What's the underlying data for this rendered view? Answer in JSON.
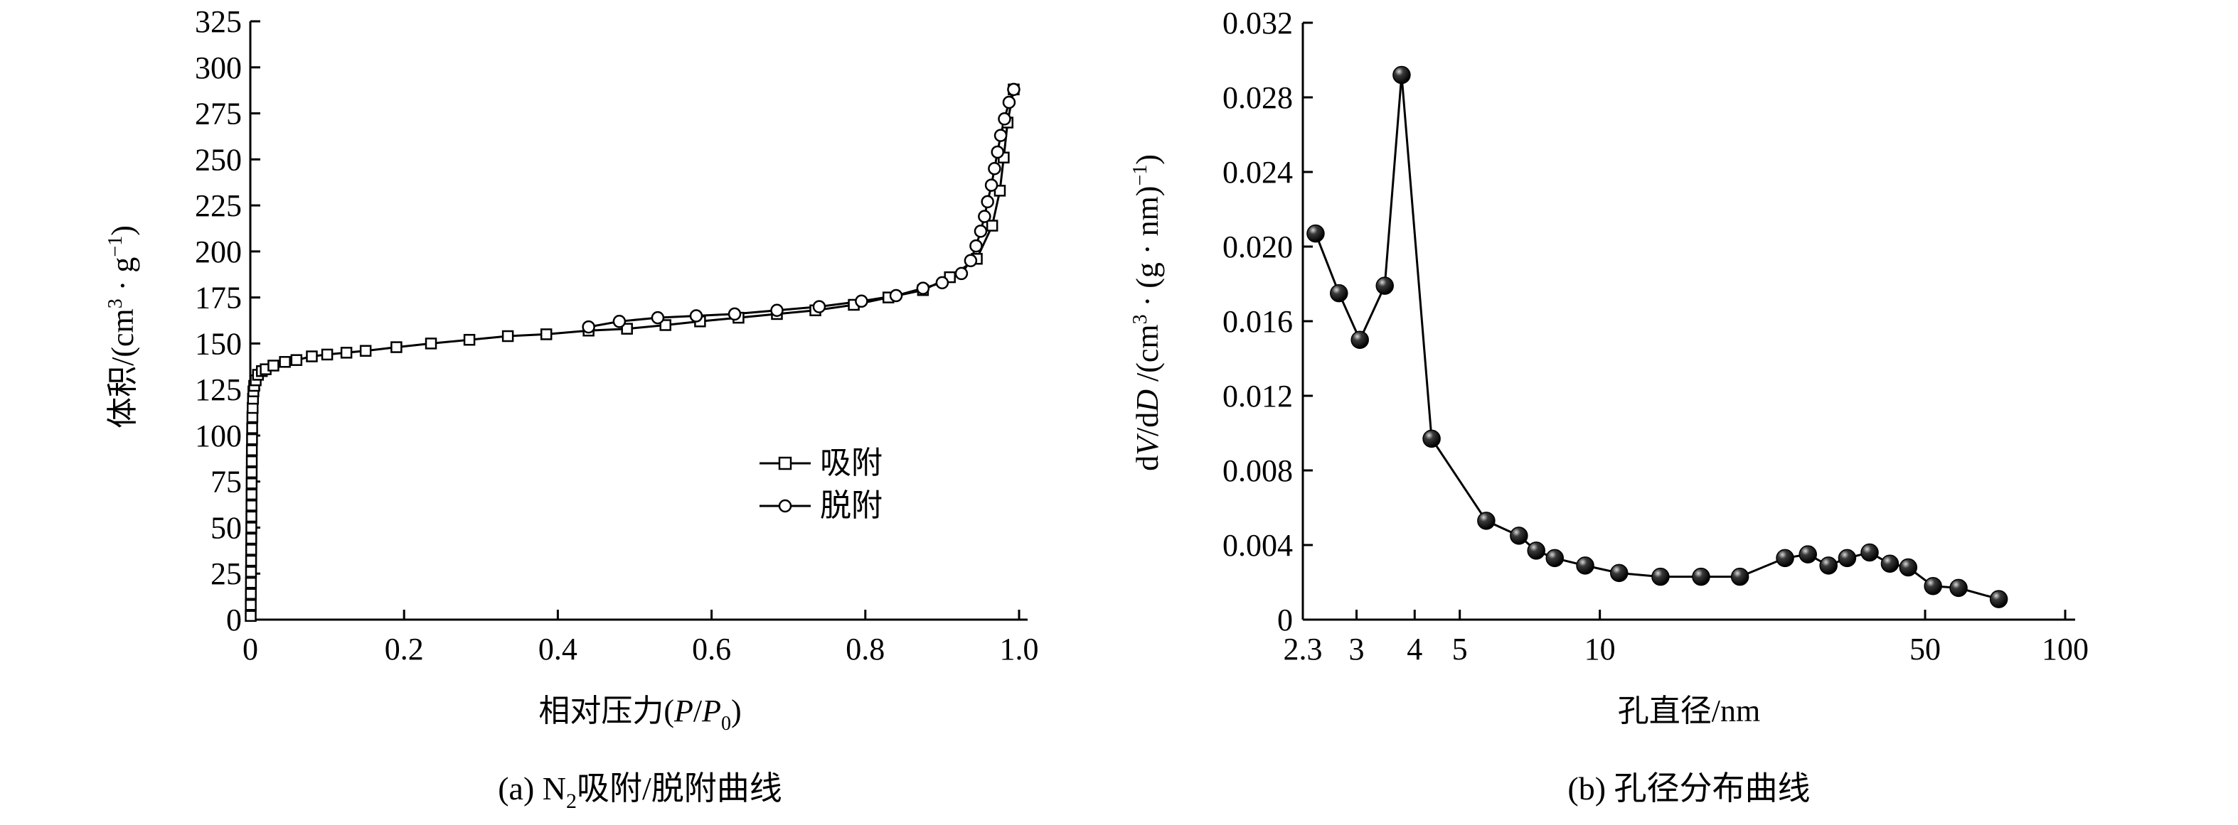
{
  "chart_data": [
    {
      "type": "line",
      "caption": {
        "prefix": "(a) N",
        "sub": "2",
        "suffix": "吸附/脱附曲线"
      },
      "xlabel": {
        "text": "相对压力(",
        "var1": "P",
        "slash": "/",
        "var2": "P",
        "sub": "0",
        "close": ")"
      },
      "ylabel": {
        "text": "体积/(cm",
        "sup1": "3",
        "mid": " · g",
        "sup2": "−1",
        "close": ")"
      },
      "xlim": [
        0,
        1.0
      ],
      "ylim": [
        0,
        325
      ],
      "xticks": [
        "0",
        "0.2",
        "0.4",
        "0.6",
        "0.8",
        "1.0"
      ],
      "yticks": [
        "0",
        "25",
        "50",
        "75",
        "100",
        "125",
        "150",
        "175",
        "200",
        "225",
        "250",
        "275",
        "300",
        "325"
      ],
      "legend": {
        "position": "center-right",
        "entries": [
          "吸附",
          "脱附"
        ]
      },
      "series": [
        {
          "name": "吸附",
          "marker": "square",
          "points": [
            [
              0.0005,
              2
            ],
            [
              0.0006,
              8
            ],
            [
              0.0007,
              14
            ],
            [
              0.0008,
              20
            ],
            [
              0.0009,
              26
            ],
            [
              0.001,
              32
            ],
            [
              0.0011,
              38
            ],
            [
              0.0012,
              44
            ],
            [
              0.0013,
              50
            ],
            [
              0.0014,
              56
            ],
            [
              0.0015,
              62
            ],
            [
              0.0016,
              68
            ],
            [
              0.0017,
              74
            ],
            [
              0.0018,
              80
            ],
            [
              0.0019,
              86
            ],
            [
              0.002,
              92
            ],
            [
              0.0022,
              98
            ],
            [
              0.0024,
              104
            ],
            [
              0.0027,
              110
            ],
            [
              0.003,
              115
            ],
            [
              0.0035,
              120
            ],
            [
              0.004,
              124
            ],
            [
              0.005,
              127
            ],
            [
              0.007,
              130
            ],
            [
              0.01,
              133
            ],
            [
              0.015,
              135
            ],
            [
              0.02,
              136
            ],
            [
              0.03,
              138
            ],
            [
              0.045,
              140
            ],
            [
              0.06,
              141
            ],
            [
              0.08,
              143
            ],
            [
              0.1,
              144
            ],
            [
              0.125,
              145
            ],
            [
              0.15,
              146
            ],
            [
              0.19,
              148
            ],
            [
              0.235,
              150
            ],
            [
              0.285,
              152
            ],
            [
              0.335,
              154
            ],
            [
              0.385,
              155
            ],
            [
              0.44,
              157
            ],
            [
              0.49,
              158
            ],
            [
              0.54,
              160
            ],
            [
              0.585,
              162
            ],
            [
              0.635,
              164
            ],
            [
              0.685,
              166
            ],
            [
              0.735,
              168
            ],
            [
              0.785,
              171
            ],
            [
              0.83,
              175
            ],
            [
              0.875,
              179
            ],
            [
              0.91,
              186
            ],
            [
              0.945,
              196
            ],
            [
              0.965,
              214
            ],
            [
              0.975,
              233
            ],
            [
              0.98,
              251
            ],
            [
              0.985,
              270
            ],
            [
              0.993,
              288
            ]
          ]
        },
        {
          "name": "脱附",
          "marker": "circle",
          "points": [
            [
              0.993,
              288
            ],
            [
              0.987,
              281
            ],
            [
              0.981,
              272
            ],
            [
              0.976,
              263
            ],
            [
              0.972,
              254
            ],
            [
              0.968,
              245
            ],
            [
              0.964,
              236
            ],
            [
              0.959,
              227
            ],
            [
              0.955,
              219
            ],
            [
              0.95,
              211
            ],
            [
              0.944,
              203
            ],
            [
              0.937,
              195
            ],
            [
              0.925,
              188
            ],
            [
              0.9,
              183
            ],
            [
              0.875,
              180
            ],
            [
              0.84,
              176
            ],
            [
              0.795,
              173
            ],
            [
              0.74,
              170
            ],
            [
              0.685,
              168
            ],
            [
              0.63,
              166
            ],
            [
              0.58,
              165
            ],
            [
              0.53,
              164
            ],
            [
              0.48,
              162
            ],
            [
              0.44,
              159
            ]
          ]
        }
      ]
    },
    {
      "type": "line",
      "caption": "(b) 孔径分布曲线",
      "xlabel": "孔直径/nm",
      "ylabel": {
        "d1": "d",
        "v": "V",
        "mid": "/d",
        "d": "D",
        "unit": " /(cm",
        "sup1": "3",
        "mid2": " · (g · nm)",
        "sup2": "−1",
        "close": ")"
      },
      "x_scale": "log",
      "xlim": [
        2.3,
        100
      ],
      "ylim": [
        0,
        0.032
      ],
      "xticks": [
        "2.3",
        "3",
        "4",
        "5",
        "10",
        "50",
        "100"
      ],
      "yticks": [
        "0",
        "0.004",
        "0.008",
        "0.012",
        "0.016",
        "0.020",
        "0.024",
        "0.028",
        "0.032"
      ],
      "series": [
        {
          "marker": "sphere",
          "points": [
            [
              2.45,
              0.0207
            ],
            [
              2.75,
              0.0175
            ],
            [
              3.05,
              0.015
            ],
            [
              3.45,
              0.0179
            ],
            [
              3.75,
              0.0292
            ],
            [
              4.35,
              0.0097
            ],
            [
              5.7,
              0.0053
            ],
            [
              6.7,
              0.0045
            ],
            [
              7.3,
              0.0037
            ],
            [
              8.0,
              0.0033
            ],
            [
              9.3,
              0.0029
            ],
            [
              11.0,
              0.0025
            ],
            [
              13.5,
              0.0023
            ],
            [
              16.5,
              0.0023
            ],
            [
              20.0,
              0.0023
            ],
            [
              25.0,
              0.0033
            ],
            [
              28.0,
              0.0035
            ],
            [
              31.0,
              0.0029
            ],
            [
              34.0,
              0.0033
            ],
            [
              38.0,
              0.0036
            ],
            [
              42.0,
              0.003
            ],
            [
              46.0,
              0.0028
            ],
            [
              52.0,
              0.0018
            ],
            [
              59.0,
              0.0017
            ],
            [
              72.0,
              0.0011
            ]
          ]
        }
      ]
    }
  ]
}
